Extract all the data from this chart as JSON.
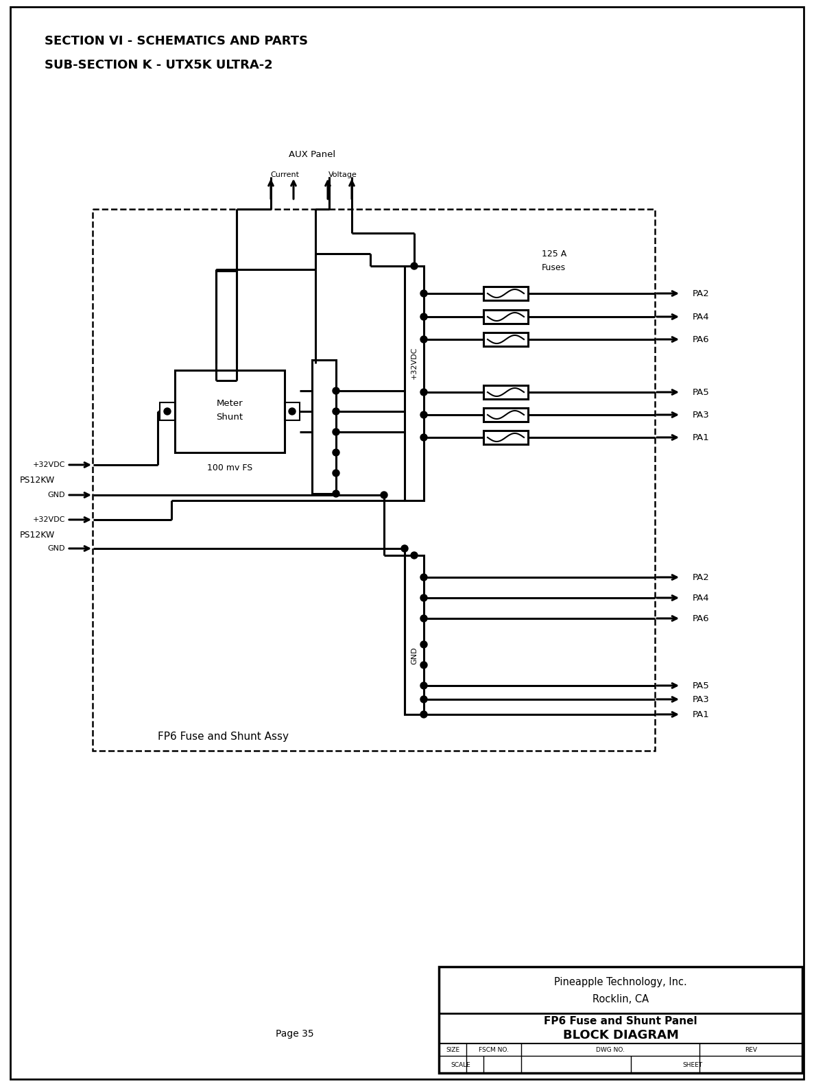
{
  "title_line1": "SECTION VI - SCHEMATICS AND PARTS",
  "title_line2": "SUB-SECTION K - UTX5K ULTRA-2",
  "company_line1": "Pineapple Technology, Inc.",
  "company_line2": "Rocklin, CA",
  "drawing_title1": "FP6 Fuse and Shunt Panel",
  "drawing_title2": "BLOCK DIAGRAM",
  "page_label": "Page 35",
  "bg_color": "#ffffff",
  "line_color": "#000000"
}
